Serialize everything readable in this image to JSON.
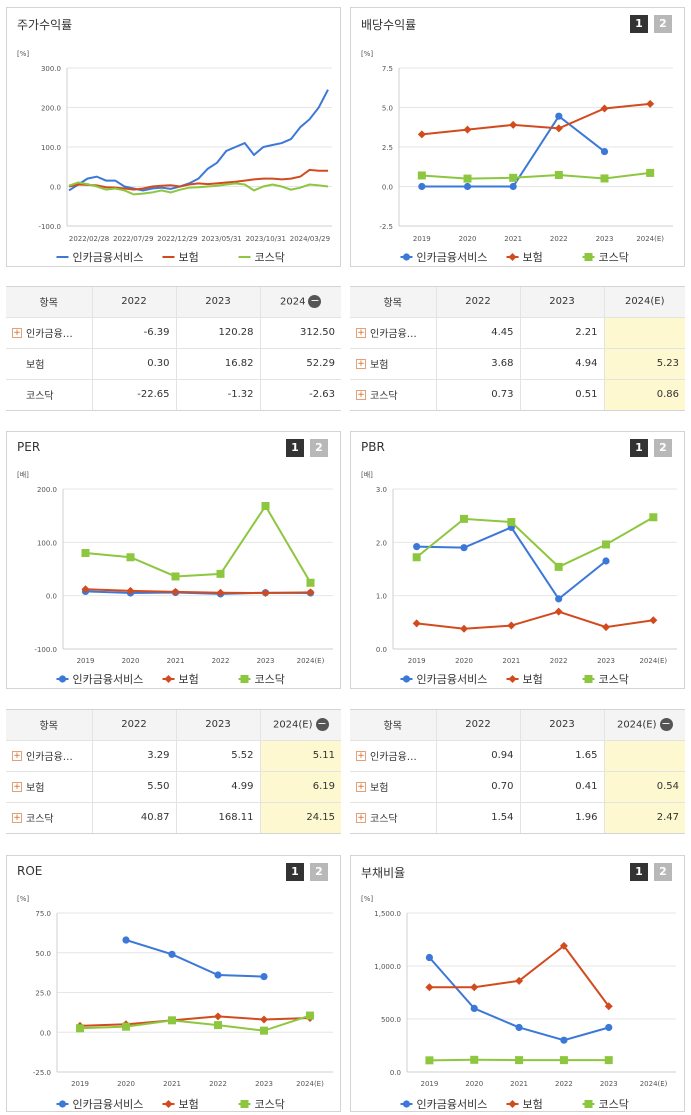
{
  "charts": [
    {
      "id": "stock-return",
      "title": "주가수익률",
      "unit": "[%]",
      "paging": false,
      "chart_data": {
        "type": "line",
        "ylim": [
          -100,
          300
        ],
        "yticks": [
          -100,
          0,
          100,
          200,
          300
        ],
        "ytick_labels": [
          "-100.0",
          "0.0",
          "100.0",
          "200.0",
          "300.0"
        ],
        "xtick_labels": [
          "2022/02/28",
          "2022/07/29",
          "2022/12/29",
          "2023/05/31",
          "2023/10/31",
          "2024/03/29"
        ],
        "series": [
          {
            "name": "인카금융서비스",
            "color": "#3b78d8",
            "marker": "none",
            "values": [
              -10,
              5,
              20,
              25,
              15,
              15,
              0,
              -5,
              -10,
              -5,
              -3,
              -6,
              0,
              8,
              20,
              45,
              60,
              90,
              100,
              110,
              80,
              100,
              105,
              110,
              120,
              150,
              170,
              200,
              245
            ]
          },
          {
            "name": "보험",
            "color": "#d24b1e",
            "marker": "none",
            "values": [
              0,
              5,
              4,
              3,
              -2,
              -3,
              -5,
              -8,
              -5,
              0,
              2,
              3,
              0,
              5,
              8,
              6,
              8,
              10,
              12,
              15,
              18,
              20,
              20,
              18,
              20,
              25,
              42,
              40,
              40
            ]
          },
          {
            "name": "코스닥",
            "color": "#8dc63f",
            "marker": "none",
            "values": [
              2,
              10,
              6,
              0,
              -8,
              -5,
              -10,
              -20,
              -18,
              -15,
              -10,
              -15,
              -8,
              -3,
              -2,
              0,
              2,
              5,
              8,
              5,
              -10,
              0,
              5,
              0,
              -8,
              -3,
              5,
              3,
              0
            ]
          }
        ]
      }
    },
    {
      "id": "dividend-yield",
      "title": "배당수익률",
      "unit": "[%]",
      "paging": true,
      "page1": "1",
      "page2": "2",
      "chart_data": {
        "type": "line",
        "ylim": [
          -2.5,
          7.5
        ],
        "yticks": [
          -2.5,
          0,
          2.5,
          5,
          7.5
        ],
        "ytick_labels": [
          "-2.5",
          "0.0",
          "2.5",
          "5.0",
          "7.5"
        ],
        "categories": [
          "2019",
          "2020",
          "2021",
          "2022",
          "2023",
          "2024(E)"
        ],
        "series": [
          {
            "name": "인카금융서비스",
            "color": "#3b78d8",
            "marker": "circle",
            "values": [
              0,
              0,
              0,
              4.45,
              2.21,
              null
            ]
          },
          {
            "name": "보험",
            "color": "#d24b1e",
            "marker": "diamond",
            "values": [
              3.3,
              3.6,
              3.9,
              3.68,
              4.94,
              5.23
            ]
          },
          {
            "name": "코스닥",
            "color": "#8dc63f",
            "marker": "square",
            "values": [
              0.7,
              0.5,
              0.55,
              0.73,
              0.51,
              0.86
            ]
          }
        ]
      }
    },
    {
      "id": "per",
      "title": "PER",
      "unit": "[배]",
      "paging": true,
      "page1": "1",
      "page2": "2",
      "chart_data": {
        "type": "line",
        "ylim": [
          -100,
          200
        ],
        "yticks": [
          -100,
          0,
          100,
          200
        ],
        "ytick_labels": [
          "-100.0",
          "0.0",
          "100.0",
          "200.0"
        ],
        "categories": [
          "2019",
          "2020",
          "2021",
          "2022",
          "2023",
          "2024(E)"
        ],
        "series": [
          {
            "name": "인카금융서비스",
            "color": "#3b78d8",
            "marker": "circle",
            "values": [
              8,
              5,
              6,
              3.29,
              5.52,
              5.11
            ]
          },
          {
            "name": "보험",
            "color": "#d24b1e",
            "marker": "diamond",
            "values": [
              12,
              9,
              7,
              5.5,
              4.99,
              6.19
            ]
          },
          {
            "name": "코스닥",
            "color": "#8dc63f",
            "marker": "square",
            "values": [
              80,
              72,
              36,
              40.87,
              168.11,
              24.15
            ]
          }
        ]
      }
    },
    {
      "id": "pbr",
      "title": "PBR",
      "unit": "[배]",
      "paging": true,
      "page1": "1",
      "page2": "2",
      "chart_data": {
        "type": "line",
        "ylim": [
          0,
          3
        ],
        "yticks": [
          0,
          1,
          2,
          3
        ],
        "ytick_labels": [
          "0.0",
          "1.0",
          "2.0",
          "3.0"
        ],
        "categories": [
          "2019",
          "2020",
          "2021",
          "2022",
          "2023",
          "2024(E)"
        ],
        "series": [
          {
            "name": "인카금융서비스",
            "color": "#3b78d8",
            "marker": "circle",
            "values": [
              1.92,
              1.9,
              2.28,
              0.94,
              1.65,
              null
            ]
          },
          {
            "name": "보험",
            "color": "#d24b1e",
            "marker": "diamond",
            "values": [
              0.48,
              0.38,
              0.44,
              0.7,
              0.41,
              0.54
            ]
          },
          {
            "name": "코스닥",
            "color": "#8dc63f",
            "marker": "square",
            "values": [
              1.72,
              2.44,
              2.38,
              1.54,
              1.96,
              2.47
            ]
          }
        ]
      }
    },
    {
      "id": "roe",
      "title": "ROE",
      "unit": "[%]",
      "paging": true,
      "page1": "1",
      "page2": "2",
      "chart_data": {
        "type": "line",
        "ylim": [
          -25,
          75
        ],
        "yticks": [
          -25,
          0,
          25,
          50,
          75
        ],
        "ytick_labels": [
          "-25.0",
          "0.0",
          "25.0",
          "50.0",
          "75.0"
        ],
        "categories": [
          "2019",
          "2020",
          "2021",
          "2022",
          "2023",
          "2024(E)"
        ],
        "series": [
          {
            "name": "인카금융서비스",
            "color": "#3b78d8",
            "marker": "circle",
            "values": [
              null,
              58,
              49,
              36,
              35,
              null
            ]
          },
          {
            "name": "보험",
            "color": "#d24b1e",
            "marker": "diamond",
            "values": [
              4,
              5,
              7.5,
              10,
              8,
              9
            ]
          },
          {
            "name": "코스닥",
            "color": "#8dc63f",
            "marker": "square",
            "values": [
              2.5,
              3.5,
              7.5,
              4.5,
              1,
              10.5
            ]
          }
        ]
      }
    },
    {
      "id": "debt-ratio",
      "title": "부채비율",
      "unit": "[%]",
      "paging": true,
      "page1": "1",
      "page2": "2",
      "chart_data": {
        "type": "line",
        "ylim": [
          0,
          1500
        ],
        "yticks": [
          0,
          500,
          1000,
          1500
        ],
        "ytick_labels": [
          "0.0",
          "500.0",
          "1,000.0",
          "1,500.0"
        ],
        "categories": [
          "2019",
          "2020",
          "2021",
          "2022",
          "2023",
          "2024(E)"
        ],
        "series": [
          {
            "name": "인카금융서비스",
            "color": "#3b78d8",
            "marker": "circle",
            "values": [
              1080,
              600,
              420,
              300,
              420,
              null
            ]
          },
          {
            "name": "보험",
            "color": "#d24b1e",
            "marker": "diamond",
            "values": [
              800,
              800,
              860,
              1190,
              620,
              null
            ]
          },
          {
            "name": "코스닥",
            "color": "#8dc63f",
            "marker": "square",
            "values": [
              110,
              115,
              112,
              112,
              112,
              null
            ]
          }
        ]
      }
    }
  ],
  "tables": [
    {
      "id": "stock-return-table",
      "header": [
        "항목",
        "2022",
        "2023",
        "2024"
      ],
      "header_minus_col": 3,
      "rows": [
        {
          "name": "인카금융…",
          "plus": true,
          "values": [
            "-6.39",
            "120.28",
            "312.50"
          ],
          "hl": [
            false,
            false,
            false
          ]
        },
        {
          "name": "보험",
          "plus": false,
          "values": [
            "0.30",
            "16.82",
            "52.29"
          ],
          "hl": [
            false,
            false,
            false
          ]
        },
        {
          "name": "코스닥",
          "plus": false,
          "values": [
            "-22.65",
            "-1.32",
            "-2.63"
          ],
          "hl": [
            false,
            false,
            false
          ]
        }
      ]
    },
    {
      "id": "dividend-yield-table",
      "header": [
        "항목",
        "2022",
        "2023",
        "2024(E)"
      ],
      "header_minus_col": -1,
      "rows": [
        {
          "name": "인카금융…",
          "plus": true,
          "values": [
            "4.45",
            "2.21",
            ""
          ],
          "hl": [
            false,
            false,
            true
          ]
        },
        {
          "name": "보험",
          "plus": true,
          "values": [
            "3.68",
            "4.94",
            "5.23"
          ],
          "hl": [
            false,
            false,
            true
          ]
        },
        {
          "name": "코스닥",
          "plus": true,
          "values": [
            "0.73",
            "0.51",
            "0.86"
          ],
          "hl": [
            false,
            false,
            true
          ]
        }
      ]
    },
    {
      "id": "per-table",
      "header": [
        "항목",
        "2022",
        "2023",
        "2024(E)"
      ],
      "header_minus_col": 3,
      "rows": [
        {
          "name": "인카금융…",
          "plus": true,
          "values": [
            "3.29",
            "5.52",
            "5.11"
          ],
          "hl": [
            false,
            false,
            true
          ]
        },
        {
          "name": "보험",
          "plus": true,
          "values": [
            "5.50",
            "4.99",
            "6.19"
          ],
          "hl": [
            false,
            false,
            true
          ]
        },
        {
          "name": "코스닥",
          "plus": true,
          "values": [
            "40.87",
            "168.11",
            "24.15"
          ],
          "hl": [
            false,
            false,
            true
          ]
        }
      ]
    },
    {
      "id": "pbr-table",
      "header": [
        "항목",
        "2022",
        "2023",
        "2024(E)"
      ],
      "header_minus_col": 3,
      "rows": [
        {
          "name": "인카금융…",
          "plus": true,
          "values": [
            "0.94",
            "1.65",
            ""
          ],
          "hl": [
            false,
            false,
            true
          ]
        },
        {
          "name": "보험",
          "plus": true,
          "values": [
            "0.70",
            "0.41",
            "0.54"
          ],
          "hl": [
            false,
            false,
            true
          ]
        },
        {
          "name": "코스닥",
          "plus": true,
          "values": [
            "1.54",
            "1.96",
            "2.47"
          ],
          "hl": [
            false,
            false,
            true
          ]
        }
      ]
    }
  ]
}
